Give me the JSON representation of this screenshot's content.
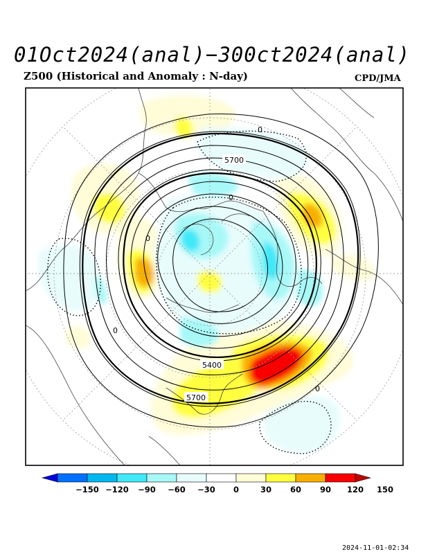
{
  "header": {
    "title": "01Oct2024(anal)−300ct2024(anal)",
    "subtitle": "Z500 (Historical and Anomaly : N-day)",
    "credit": "CPD/JMA"
  },
  "map": {
    "projection": "north-polar-stereographic",
    "contour_labels": [
      "5700",
      "5400",
      "5700"
    ],
    "zero_labels": [
      "0",
      "0",
      "0",
      "0",
      "0"
    ],
    "colorbar": {
      "tick_labels": [
        "−150",
        "−120",
        "−90",
        "−60",
        "−30",
        "0",
        "30",
        "60",
        "90",
        "120",
        "150"
      ],
      "colors": [
        "#0000e0",
        "#0070ff",
        "#00b8f0",
        "#40e8f8",
        "#a8f8f8",
        "#e8fcfc",
        "#ffffff",
        "#fffcd8",
        "#ffff40",
        "#f8b000",
        "#f80000",
        "#c00000"
      ]
    }
  },
  "footer": {
    "timestamp": "2024-11-01-02:34"
  }
}
